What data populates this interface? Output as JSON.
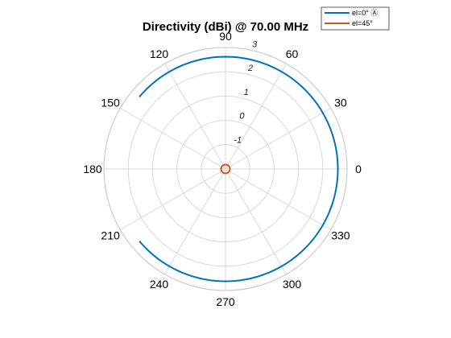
{
  "chart_data": {
    "type": "polar-line",
    "title": "Directivity (dBi) @ 70.00 MHz",
    "angle_ticks": [
      "0",
      "30",
      "60",
      "90",
      "120",
      "150",
      "180",
      "210",
      "240",
      "270",
      "300",
      "330"
    ],
    "angle_tick_values": [
      0,
      30,
      60,
      90,
      120,
      150,
      180,
      210,
      240,
      270,
      300,
      330
    ],
    "r_ticks": [
      "-1",
      "0",
      "1",
      "2",
      "3"
    ],
    "r_tick_values": [
      -1,
      0,
      1,
      2,
      3
    ],
    "r_lim": [
      -2,
      3
    ],
    "r_tick_angle_deg": 80,
    "grid": true,
    "legend_position": "top-right",
    "series": [
      {
        "name": "el=0° Ⓐ",
        "color": "#0072BD",
        "angles_deg": [
          -140,
          -120,
          -90,
          -60,
          -30,
          0,
          30,
          60,
          90,
          120,
          140
        ],
        "values": [
          2.62,
          2.62,
          2.62,
          2.62,
          2.62,
          2.62,
          2.62,
          2.62,
          2.62,
          2.62,
          2.62
        ]
      },
      {
        "name": "el=45°",
        "color": "#D95319",
        "angles_deg": [
          0,
          60,
          120,
          180,
          240,
          300,
          360
        ],
        "values": [
          -1.82,
          -1.82,
          -1.82,
          -1.82,
          -1.82,
          -1.82,
          -1.82
        ]
      }
    ]
  }
}
